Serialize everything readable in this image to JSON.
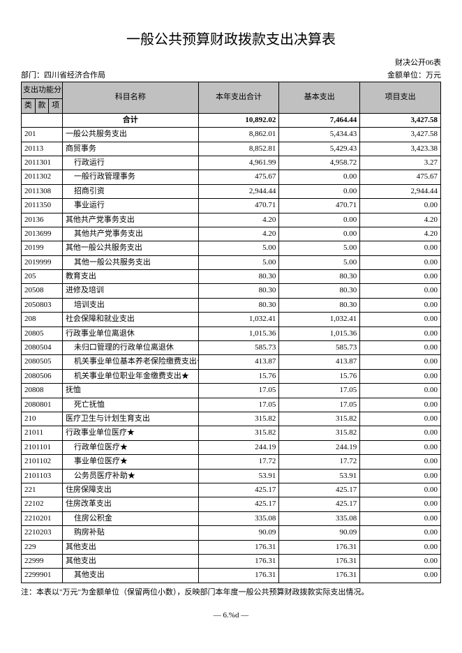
{
  "title": "一般公共预算财政拨款支出决算表",
  "form_code": "财决公开06表",
  "department_label": "部门：",
  "department": "四川省经济合作局",
  "unit_label": "金额单位：万元",
  "header": {
    "func_group": "支出功能分类",
    "lei": "类",
    "kuan": "款",
    "xiang": "项",
    "subject": "科目名称",
    "total": "本年支出合计",
    "basic": "基本支出",
    "project": "项目支出"
  },
  "sum_label": "合计",
  "sum": {
    "total": "10,892.02",
    "basic": "7,464.44",
    "project": "3,427.58"
  },
  "rows": [
    {
      "code": "201",
      "name": "一般公共服务支出",
      "indent": 0,
      "total": "8,862.01",
      "basic": "5,434.43",
      "project": "3,427.58"
    },
    {
      "code": "20113",
      "name": "商贸事务",
      "indent": 0,
      "total": "8,852.81",
      "basic": "5,429.43",
      "project": "3,423.38"
    },
    {
      "code": "2011301",
      "name": "行政运行",
      "indent": 1,
      "total": "4,961.99",
      "basic": "4,958.72",
      "project": "3.27"
    },
    {
      "code": "2011302",
      "name": "一般行政管理事务",
      "indent": 1,
      "total": "475.67",
      "basic": "0.00",
      "project": "475.67"
    },
    {
      "code": "2011308",
      "name": "招商引资",
      "indent": 1,
      "total": "2,944.44",
      "basic": "0.00",
      "project": "2,944.44"
    },
    {
      "code": "2011350",
      "name": "事业运行",
      "indent": 1,
      "total": "470.71",
      "basic": "470.71",
      "project": "0.00"
    },
    {
      "code": "20136",
      "name": "其他共产党事务支出",
      "indent": 0,
      "total": "4.20",
      "basic": "0.00",
      "project": "4.20"
    },
    {
      "code": "2013699",
      "name": "其他共产党事务支出",
      "indent": 1,
      "total": "4.20",
      "basic": "0.00",
      "project": "4.20"
    },
    {
      "code": "20199",
      "name": "其他一般公共服务支出",
      "indent": 0,
      "total": "5.00",
      "basic": "5.00",
      "project": "0.00"
    },
    {
      "code": "2019999",
      "name": "其他一般公共服务支出",
      "indent": 1,
      "total": "5.00",
      "basic": "5.00",
      "project": "0.00"
    },
    {
      "code": "205",
      "name": "教育支出",
      "indent": 0,
      "total": "80.30",
      "basic": "80.30",
      "project": "0.00"
    },
    {
      "code": "20508",
      "name": "进修及培训",
      "indent": 0,
      "total": "80.30",
      "basic": "80.30",
      "project": "0.00"
    },
    {
      "code": "2050803",
      "name": "培训支出",
      "indent": 1,
      "total": "80.30",
      "basic": "80.30",
      "project": "0.00"
    },
    {
      "code": "208",
      "name": "社会保障和就业支出",
      "indent": 0,
      "total": "1,032.41",
      "basic": "1,032.41",
      "project": "0.00"
    },
    {
      "code": "20805",
      "name": "行政事业单位离退休",
      "indent": 0,
      "total": "1,015.36",
      "basic": "1,015.36",
      "project": "0.00"
    },
    {
      "code": "2080504",
      "name": "未归口管理的行政单位离退休",
      "indent": 1,
      "total": "585.73",
      "basic": "585.73",
      "project": "0.00"
    },
    {
      "code": "2080505",
      "name": "机关事业单位基本养老保险缴费支出★",
      "indent": 1,
      "total": "413.87",
      "basic": "413.87",
      "project": "0.00"
    },
    {
      "code": "2080506",
      "name": "机关事业单位职业年金缴费支出★",
      "indent": 1,
      "total": "15.76",
      "basic": "15.76",
      "project": "0.00"
    },
    {
      "code": "20808",
      "name": "抚恤",
      "indent": 0,
      "total": "17.05",
      "basic": "17.05",
      "project": "0.00"
    },
    {
      "code": "2080801",
      "name": "死亡抚恤",
      "indent": 1,
      "total": "17.05",
      "basic": "17.05",
      "project": "0.00"
    },
    {
      "code": "210",
      "name": "医疗卫生与计划生育支出",
      "indent": 0,
      "total": "315.82",
      "basic": "315.82",
      "project": "0.00"
    },
    {
      "code": "21011",
      "name": "行政事业单位医疗★",
      "indent": 0,
      "total": "315.82",
      "basic": "315.82",
      "project": "0.00"
    },
    {
      "code": "2101101",
      "name": "行政单位医疗★",
      "indent": 1,
      "total": "244.19",
      "basic": "244.19",
      "project": "0.00"
    },
    {
      "code": "2101102",
      "name": "事业单位医疗★",
      "indent": 1,
      "total": "17.72",
      "basic": "17.72",
      "project": "0.00"
    },
    {
      "code": "2101103",
      "name": "公务员医疗补助★",
      "indent": 1,
      "total": "53.91",
      "basic": "53.91",
      "project": "0.00"
    },
    {
      "code": "221",
      "name": "住房保障支出",
      "indent": 0,
      "total": "425.17",
      "basic": "425.17",
      "project": "0.00"
    },
    {
      "code": "22102",
      "name": "住房改革支出",
      "indent": 0,
      "total": "425.17",
      "basic": "425.17",
      "project": "0.00"
    },
    {
      "code": "2210201",
      "name": "住房公积金",
      "indent": 1,
      "total": "335.08",
      "basic": "335.08",
      "project": "0.00"
    },
    {
      "code": "2210203",
      "name": "购房补贴",
      "indent": 1,
      "total": "90.09",
      "basic": "90.09",
      "project": "0.00"
    },
    {
      "code": "229",
      "name": "其他支出",
      "indent": 0,
      "total": "176.31",
      "basic": "176.31",
      "project": "0.00"
    },
    {
      "code": "22999",
      "name": "其他支出",
      "indent": 0,
      "total": "176.31",
      "basic": "176.31",
      "project": "0.00"
    },
    {
      "code": "2299901",
      "name": "其他支出",
      "indent": 1,
      "total": "176.31",
      "basic": "176.31",
      "project": "0.00"
    }
  ],
  "footnote": "注：本表以\"万元\"为金额单位（保留两位小数），反映部门本年度一般公共预算财政拨款实际支出情况。",
  "pagenum": "— 6.%d —"
}
